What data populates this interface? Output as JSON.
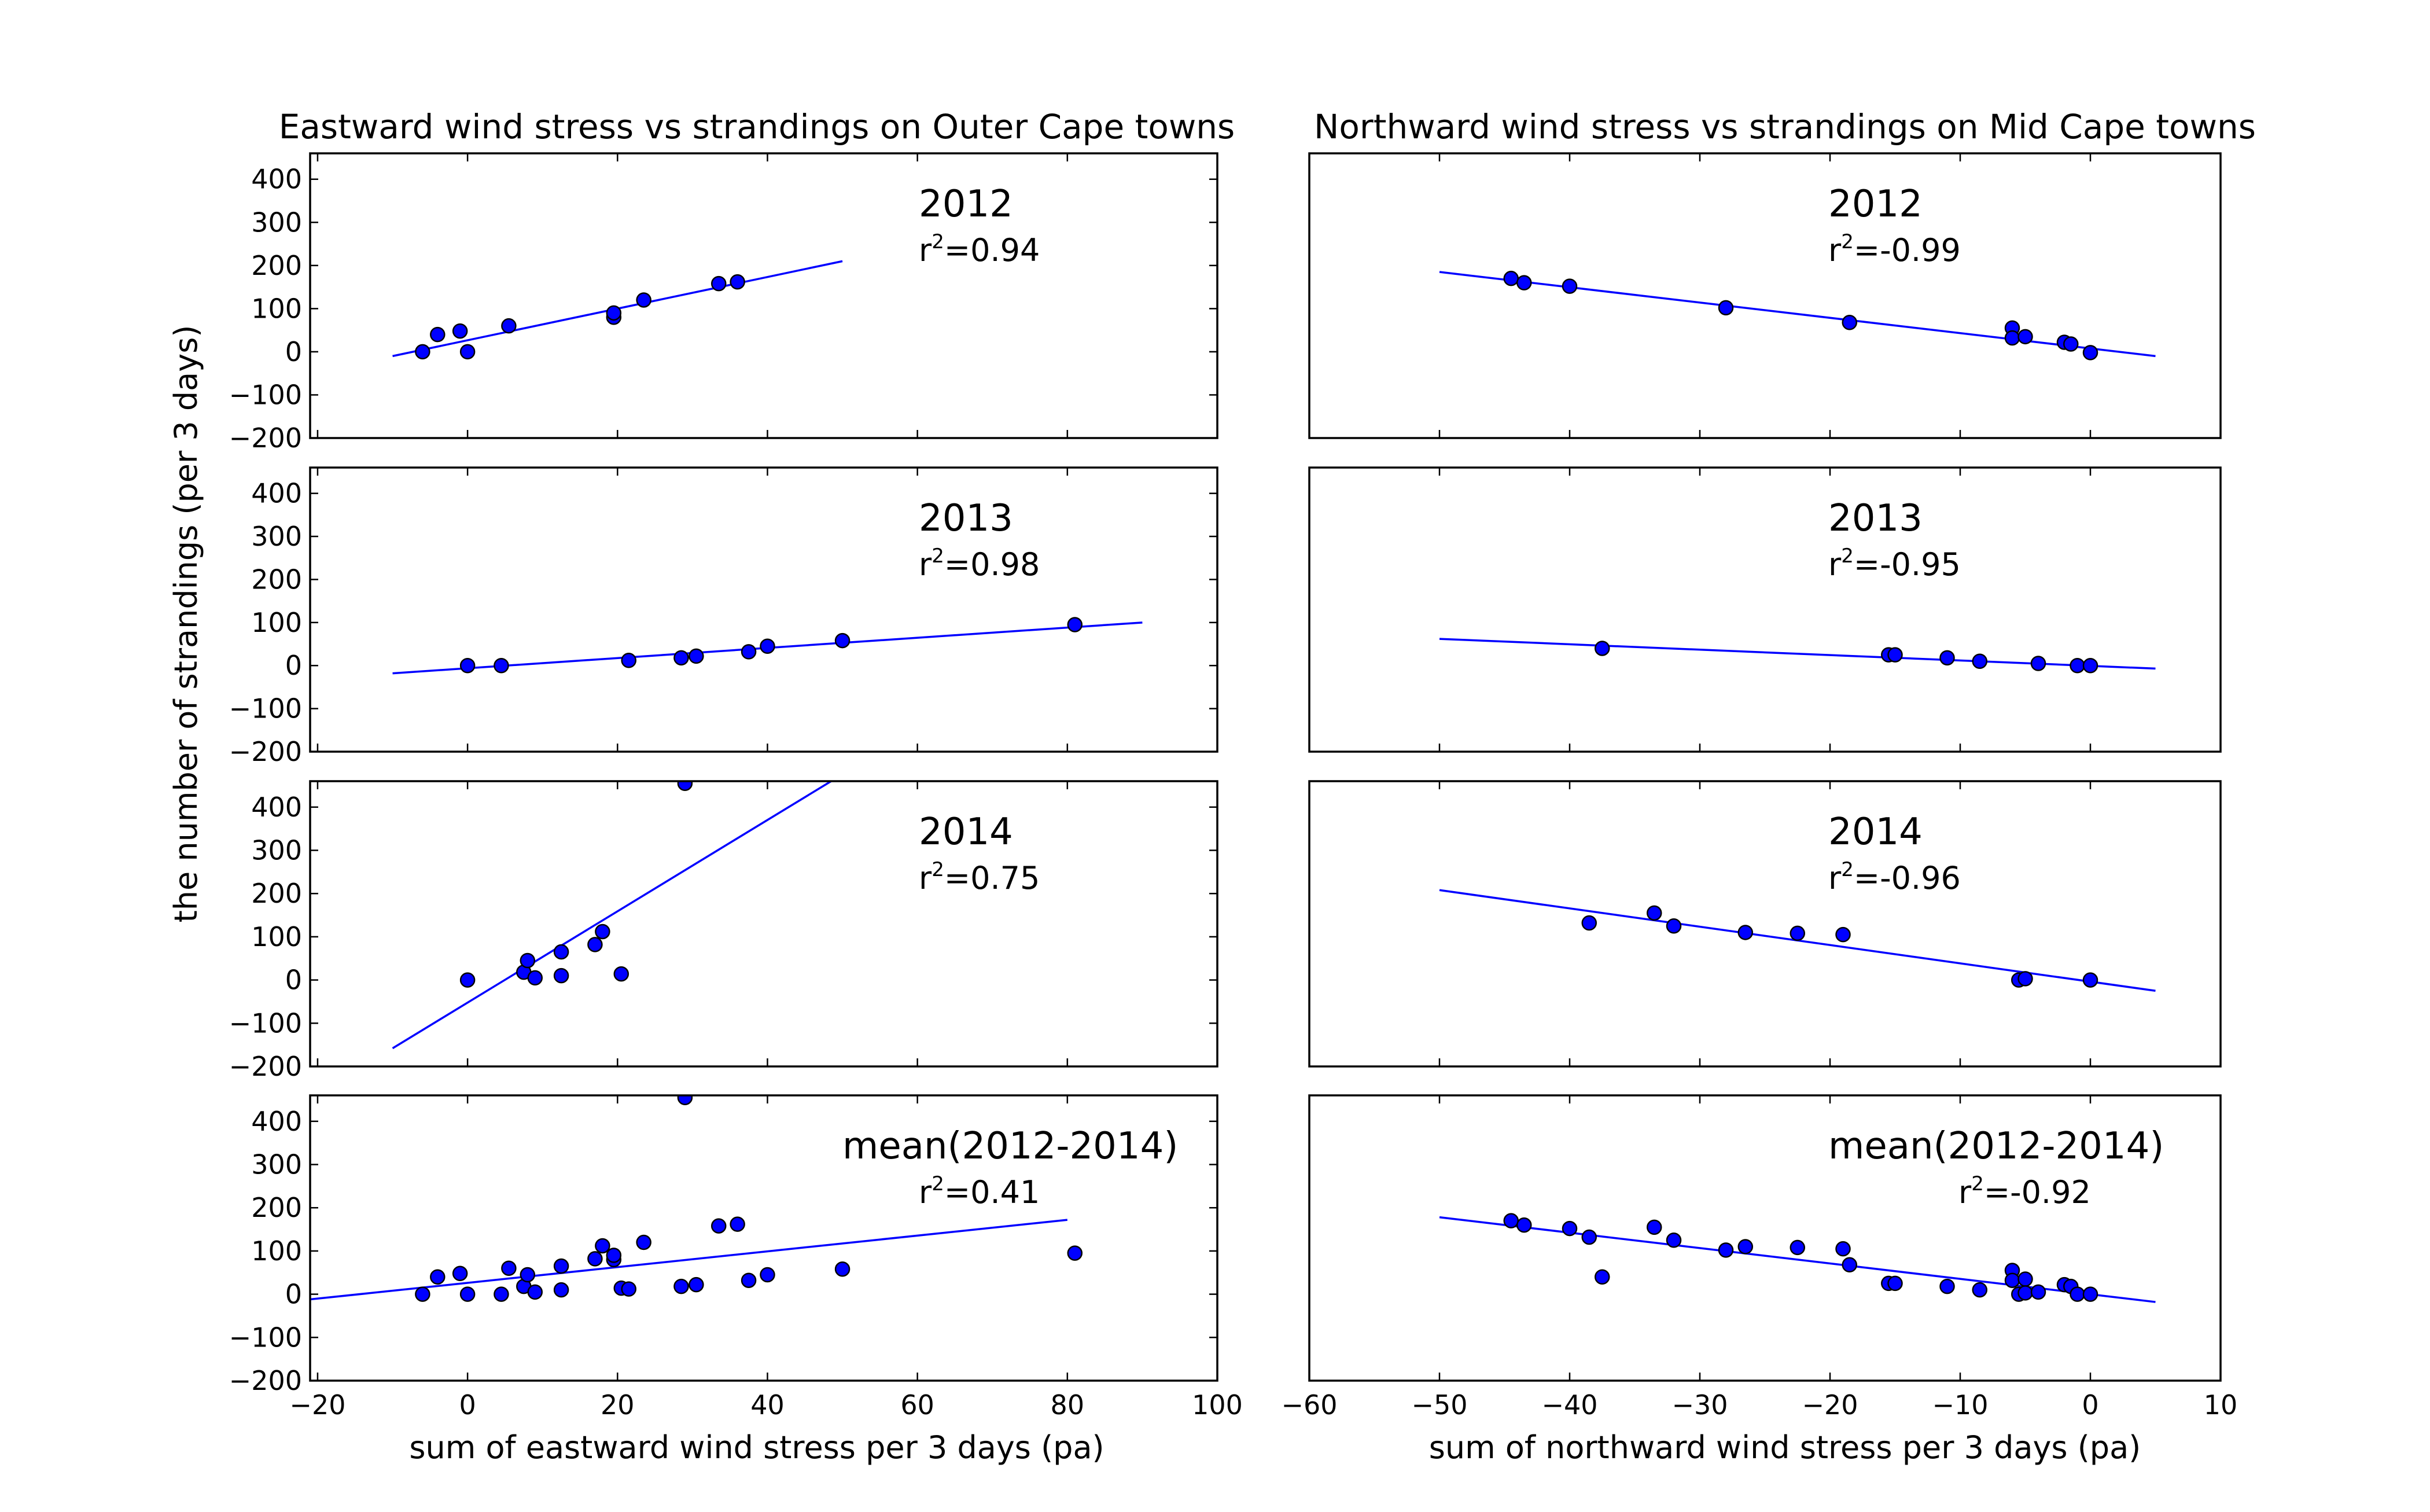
{
  "figure": {
    "ylabel": "the number of strandings (per 3 days)",
    "colors": {
      "marker": "#0000ff",
      "line": "#0000ff",
      "axes": "#000000",
      "background": "#ffffff"
    }
  },
  "columns": [
    {
      "title": "Eastward wind stress vs strandings on Outer Cape towns",
      "xlabel": "sum of eastward wind stress per 3 days (pa)",
      "xlim": [
        -21,
        100
      ],
      "xticks": [
        -20,
        0,
        20,
        40,
        60,
        80,
        100
      ],
      "xtick_labels": [
        "−20",
        "0",
        "20",
        "40",
        "60",
        "80",
        "100"
      ]
    },
    {
      "title": "Northward wind stress vs strandings on Mid Cape towns",
      "xlabel": "sum of northward wind stress per 3 days (pa)",
      "xlim": [
        -60,
        10
      ],
      "xticks": [
        -60,
        -50,
        -40,
        -30,
        -20,
        -10,
        0,
        10
      ],
      "xtick_labels": [
        "−60",
        "−50",
        "−40",
        "−30",
        "−20",
        "−10",
        "0",
        "10"
      ]
    }
  ],
  "chart_data": [
    {
      "type": "scatter",
      "column": 0,
      "row": 0,
      "label": "2012",
      "r2_prefix": "r",
      "r2_exp": "2",
      "r2_value": "=0.94",
      "ylim": [
        -200,
        460
      ],
      "yticks": [
        -200,
        -100,
        0,
        100,
        200,
        300,
        400
      ],
      "ytick_labels": [
        "−200",
        "−100",
        "0",
        "100",
        "200",
        "300",
        "400"
      ],
      "points": [
        [
          -6,
          0
        ],
        [
          -4,
          40
        ],
        [
          -1,
          48
        ],
        [
          0,
          0
        ],
        [
          5.5,
          60
        ],
        [
          19.5,
          80
        ],
        [
          19.5,
          90
        ],
        [
          23.5,
          120
        ],
        [
          33.5,
          158
        ],
        [
          36,
          162
        ]
      ],
      "fit": [
        [
          -10,
          -10
        ],
        [
          50,
          210
        ]
      ]
    },
    {
      "type": "scatter",
      "column": 1,
      "row": 0,
      "label": "2012",
      "r2_prefix": "r",
      "r2_exp": "2",
      "r2_value": "=-0.99",
      "ylim": [
        -200,
        460
      ],
      "points": [
        [
          -44.5,
          170
        ],
        [
          -43.5,
          160
        ],
        [
          -40,
          152
        ],
        [
          -28,
          102
        ],
        [
          -18.5,
          68
        ],
        [
          -6,
          55
        ],
        [
          -6,
          32
        ],
        [
          -5,
          35
        ],
        [
          -2,
          22
        ],
        [
          -1.5,
          18
        ],
        [
          0,
          -2
        ]
      ],
      "fit": [
        [
          -50,
          185
        ],
        [
          5,
          -10
        ]
      ]
    },
    {
      "type": "scatter",
      "column": 0,
      "row": 1,
      "label": "2013",
      "r2_prefix": "r",
      "r2_exp": "2",
      "r2_value": "=0.98",
      "ylim": [
        -200,
        460
      ],
      "yticks": [
        -200,
        -100,
        0,
        100,
        200,
        300,
        400
      ],
      "ytick_labels": [
        "−200",
        "−100",
        "0",
        "100",
        "200",
        "300",
        "400"
      ],
      "points": [
        [
          0,
          0
        ],
        [
          4.5,
          0
        ],
        [
          21.5,
          12
        ],
        [
          28.5,
          18
        ],
        [
          30.5,
          22
        ],
        [
          37.5,
          32
        ],
        [
          40,
          45
        ],
        [
          50,
          58
        ],
        [
          81,
          95
        ]
      ],
      "fit": [
        [
          -10,
          -18
        ],
        [
          90,
          100
        ]
      ]
    },
    {
      "type": "scatter",
      "column": 1,
      "row": 1,
      "label": "2013",
      "r2_prefix": "r",
      "r2_exp": "2",
      "r2_value": "=-0.95",
      "ylim": [
        -200,
        460
      ],
      "points": [
        [
          -37.5,
          40
        ],
        [
          -15.5,
          25
        ],
        [
          -15,
          25
        ],
        [
          -11,
          18
        ],
        [
          -8.5,
          10
        ],
        [
          -4,
          5
        ],
        [
          -1,
          0
        ],
        [
          0,
          0
        ]
      ],
      "fit": [
        [
          -50,
          62
        ],
        [
          5,
          -7
        ]
      ]
    },
    {
      "type": "scatter",
      "column": 0,
      "row": 2,
      "label": "2014",
      "r2_prefix": "r",
      "r2_exp": "2",
      "r2_value": "=0.75",
      "ylim": [
        -200,
        460
      ],
      "yticks": [
        -200,
        -100,
        0,
        100,
        200,
        300,
        400
      ],
      "ytick_labels": [
        "−200",
        "−100",
        "0",
        "100",
        "200",
        "300",
        "400"
      ],
      "points": [
        [
          0,
          0
        ],
        [
          7.5,
          18
        ],
        [
          8,
          45
        ],
        [
          9,
          5
        ],
        [
          12.5,
          65
        ],
        [
          12.5,
          10
        ],
        [
          17,
          82
        ],
        [
          18,
          112
        ],
        [
          20.5,
          14
        ],
        [
          29,
          455
        ]
      ],
      "fit": [
        [
          -10,
          -158
        ],
        [
          48.5,
          460
        ]
      ]
    },
    {
      "type": "scatter",
      "column": 1,
      "row": 2,
      "label": "2014",
      "r2_prefix": "r",
      "r2_exp": "2",
      "r2_value": "=-0.96",
      "ylim": [
        -200,
        460
      ],
      "points": [
        [
          -38.5,
          132
        ],
        [
          -33.5,
          155
        ],
        [
          -32,
          125
        ],
        [
          -26.5,
          110
        ],
        [
          -22.5,
          108
        ],
        [
          -19,
          105
        ],
        [
          -5.5,
          0
        ],
        [
          -5,
          3
        ],
        [
          0,
          0
        ]
      ],
      "fit": [
        [
          -50,
          208
        ],
        [
          5,
          -25
        ]
      ]
    },
    {
      "type": "scatter",
      "column": 0,
      "row": 3,
      "label": "mean(2012-2014)",
      "r2_prefix": "r",
      "r2_exp": "2",
      "r2_value": "=0.41",
      "ylim": [
        -200,
        460
      ],
      "yticks": [
        -200,
        -100,
        0,
        100,
        200,
        300,
        400
      ],
      "ytick_labels": [
        "−200",
        "−100",
        "0",
        "100",
        "200",
        "300",
        "400"
      ],
      "points": [
        [
          -6,
          0
        ],
        [
          -4,
          40
        ],
        [
          -1,
          48
        ],
        [
          0,
          0
        ],
        [
          4.5,
          0
        ],
        [
          5.5,
          60
        ],
        [
          7.5,
          18
        ],
        [
          8,
          45
        ],
        [
          9,
          5
        ],
        [
          12.5,
          65
        ],
        [
          12.5,
          10
        ],
        [
          17,
          82
        ],
        [
          18,
          112
        ],
        [
          19.5,
          80
        ],
        [
          19.5,
          90
        ],
        [
          20.5,
          14
        ],
        [
          21.5,
          12
        ],
        [
          23.5,
          120
        ],
        [
          28.5,
          18
        ],
        [
          30.5,
          22
        ],
        [
          33.5,
          158
        ],
        [
          36,
          162
        ],
        [
          37.5,
          32
        ],
        [
          40,
          45
        ],
        [
          50,
          58
        ],
        [
          81,
          95
        ],
        [
          29,
          455
        ]
      ],
      "fit": [
        [
          -21,
          -12
        ],
        [
          80,
          172
        ]
      ]
    },
    {
      "type": "scatter",
      "column": 1,
      "row": 3,
      "label": "mean(2012-2014)",
      "r2_prefix": "r",
      "r2_exp": "2",
      "r2_value": "=-0.92",
      "ylim": [
        -200,
        460
      ],
      "points": [
        [
          -44.5,
          170
        ],
        [
          -43.5,
          160
        ],
        [
          -40,
          152
        ],
        [
          -38.5,
          132
        ],
        [
          -37.5,
          40
        ],
        [
          -33.5,
          155
        ],
        [
          -32,
          125
        ],
        [
          -28,
          102
        ],
        [
          -26.5,
          110
        ],
        [
          -22.5,
          108
        ],
        [
          -19,
          105
        ],
        [
          -18.5,
          68
        ],
        [
          -15.5,
          25
        ],
        [
          -15,
          25
        ],
        [
          -11,
          18
        ],
        [
          -8.5,
          10
        ],
        [
          -6,
          55
        ],
        [
          -6,
          32
        ],
        [
          -5.5,
          0
        ],
        [
          -5,
          35
        ],
        [
          -5,
          3
        ],
        [
          -4,
          5
        ],
        [
          -2,
          22
        ],
        [
          -1.5,
          18
        ],
        [
          -1,
          0
        ],
        [
          0,
          0
        ]
      ],
      "fit": [
        [
          -50,
          178
        ],
        [
          5,
          -18
        ]
      ]
    }
  ]
}
